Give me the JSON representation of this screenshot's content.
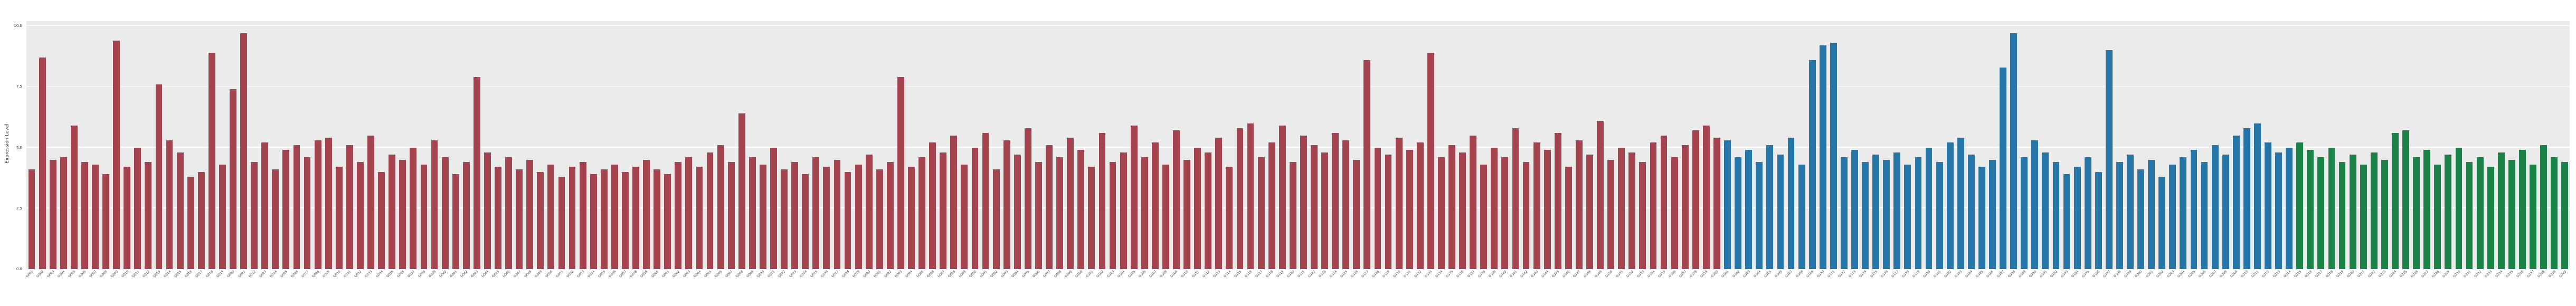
{
  "figure": {
    "background": "#ffffff",
    "plot_background": "#ebebeb",
    "grid_color": "#ffffff"
  },
  "chart_data": {
    "type": "bar",
    "title": "",
    "xlabel": "",
    "ylabel": "Expression Level",
    "ylim": [
      0,
      10
    ],
    "yticks": [
      0.0,
      2.5,
      5.0,
      7.5,
      10.0
    ],
    "ytick_labels": [
      "0.0",
      "2.5",
      "5.0",
      "7.5",
      "10.0"
    ],
    "grid": true,
    "legend": false,
    "groups": [
      {
        "name": "group-1",
        "color": "#A3444E",
        "categories": [
          "G001",
          "G002",
          "G003",
          "G004",
          "G005",
          "G006",
          "G007",
          "G008",
          "G009",
          "G010",
          "G011",
          "G012",
          "G013",
          "G014",
          "G015",
          "G016",
          "G017",
          "G018",
          "G019",
          "G020",
          "G021",
          "G022",
          "G023",
          "G024",
          "G025",
          "G026",
          "G027",
          "G028",
          "G029",
          "G030",
          "G031",
          "G032",
          "G033",
          "G034",
          "G035",
          "G036",
          "G037",
          "G038",
          "G039",
          "G040",
          "G041",
          "G042",
          "G043",
          "G044",
          "G045",
          "G046",
          "G047",
          "G048",
          "G049",
          "G050",
          "G051",
          "G052",
          "G053",
          "G054",
          "G055",
          "G056",
          "G057",
          "G058",
          "G059",
          "G060",
          "G061",
          "G062",
          "G063",
          "G064",
          "G065",
          "G066",
          "G067",
          "G068",
          "G069",
          "G070",
          "G071",
          "G072",
          "G073",
          "G074",
          "G075",
          "G076",
          "G077",
          "G078",
          "G079",
          "G080",
          "G081",
          "G082",
          "G083",
          "G084",
          "G085",
          "G086",
          "G087",
          "G088",
          "G089",
          "G090",
          "G091",
          "G092",
          "G093",
          "G094",
          "G095",
          "G096",
          "G097",
          "G098",
          "G099",
          "G100",
          "G101",
          "G102",
          "G103",
          "G104",
          "G105",
          "G106",
          "G107",
          "G108",
          "G109",
          "G110",
          "G111",
          "G112",
          "G113",
          "G114",
          "G115",
          "G116",
          "G117",
          "G118",
          "G119",
          "G120",
          "G121",
          "G122",
          "G123",
          "G124",
          "G125",
          "G126",
          "G127",
          "G128",
          "G129",
          "G130",
          "G131",
          "G132",
          "G133",
          "G134",
          "G135",
          "G136",
          "G137",
          "G138",
          "G139",
          "G140",
          "G141",
          "G142",
          "G143",
          "G144",
          "G145",
          "G146",
          "G147",
          "G148",
          "G149",
          "G150",
          "G151",
          "G152",
          "G153",
          "G154",
          "G155",
          "G156",
          "G157",
          "G158",
          "G159",
          "G160"
        ],
        "values": [
          4.1,
          8.7,
          4.5,
          4.6,
          5.9,
          4.4,
          4.3,
          3.9,
          9.4,
          4.2,
          5.0,
          4.4,
          7.6,
          5.3,
          4.8,
          3.8,
          4.0,
          8.9,
          4.3,
          7.4,
          9.7,
          4.4,
          5.2,
          4.1,
          4.9,
          5.1,
          4.6,
          5.3,
          5.4,
          4.2,
          5.1,
          4.4,
          5.5,
          4.0,
          4.7,
          4.5,
          5.0,
          4.3,
          5.3,
          4.6,
          3.9,
          4.4,
          7.9,
          4.8,
          4.2,
          4.6,
          4.1,
          4.5,
          4.0,
          4.3,
          3.8,
          4.2,
          4.4,
          3.9,
          4.1,
          4.3,
          4.0,
          4.2,
          4.5,
          4.1,
          3.9,
          4.4,
          4.6,
          4.2,
          4.8,
          5.1,
          4.4,
          6.4,
          4.6,
          4.3,
          5.0,
          4.1,
          4.4,
          3.9,
          4.6,
          4.2,
          4.5,
          4.0,
          4.3,
          4.7,
          4.1,
          4.4,
          7.9,
          4.2,
          4.6,
          5.2,
          4.8,
          5.5,
          4.3,
          5.0,
          5.6,
          4.1,
          5.3,
          4.7,
          5.8,
          4.4,
          5.1,
          4.6,
          5.4,
          4.9,
          4.2,
          5.6,
          4.4,
          4.8,
          5.9,
          4.6,
          5.2,
          4.3,
          5.7,
          4.5,
          5.0,
          4.8,
          5.4,
          4.2,
          5.8,
          6.0,
          4.6,
          5.2,
          5.9,
          4.4,
          5.5,
          5.1,
          4.8,
          5.6,
          5.3,
          4.5,
          8.6,
          5.0,
          4.7,
          5.4,
          4.9,
          5.2,
          8.9,
          4.6,
          5.1,
          4.8,
          5.5,
          4.3,
          5.0,
          4.6,
          5.8,
          4.4,
          5.2,
          4.9,
          5.6,
          4.2,
          5.3,
          4.7,
          6.1,
          4.5,
          5.0,
          4.8,
          4.4,
          5.2,
          5.5,
          4.6,
          5.1,
          5.7,
          5.9,
          5.4
        ]
      },
      {
        "name": "group-2",
        "color": "#2677A8",
        "categories": [
          "G161",
          "G162",
          "G163",
          "G164",
          "G165",
          "G166",
          "G167",
          "G168",
          "G169",
          "G170",
          "G171",
          "G172",
          "G173",
          "G174",
          "G175",
          "G176",
          "G177",
          "G178",
          "G179",
          "G180",
          "G181",
          "G182",
          "G183",
          "G184",
          "G185",
          "G186",
          "G187",
          "G188",
          "G189",
          "G190",
          "G191",
          "G192",
          "G193",
          "G194",
          "G195",
          "G196",
          "G197",
          "G198",
          "G199",
          "G200",
          "G201",
          "G202",
          "G203",
          "G204",
          "G205",
          "G206",
          "G207",
          "G208",
          "G209",
          "G210",
          "G211",
          "G212",
          "G213",
          "G214"
        ],
        "values": [
          5.3,
          4.6,
          4.9,
          4.4,
          5.1,
          4.7,
          5.4,
          4.3,
          8.6,
          9.2,
          9.3,
          4.6,
          4.9,
          4.4,
          4.7,
          4.5,
          4.8,
          4.3,
          4.6,
          5.0,
          4.4,
          5.2,
          5.4,
          4.7,
          4.2,
          4.5,
          8.3,
          9.7,
          4.6,
          5.3,
          4.8,
          4.4,
          3.9,
          4.2,
          4.6,
          4.0,
          9.0,
          4.4,
          4.7,
          4.1,
          4.5,
          3.8,
          4.3,
          4.6,
          4.9,
          4.4,
          5.1,
          4.7,
          5.5,
          5.8,
          6.0,
          5.2,
          4.8,
          5.0
        ]
      },
      {
        "name": "group-3",
        "color": "#1B8348",
        "categories": [
          "G215",
          "G216",
          "G217",
          "G218",
          "G219",
          "G220",
          "G221",
          "G222",
          "G223",
          "G224",
          "G225",
          "G226",
          "G227",
          "G228",
          "G229",
          "G230",
          "G231",
          "G232",
          "G233",
          "G234",
          "G235",
          "G236",
          "G237",
          "G238",
          "G239",
          "G240"
        ],
        "values": [
          5.2,
          4.9,
          4.6,
          5.0,
          4.4,
          4.7,
          4.3,
          4.8,
          4.5,
          5.6,
          5.7,
          4.6,
          4.9,
          4.3,
          4.7,
          5.0,
          4.4,
          4.6,
          4.2,
          4.8,
          4.5,
          4.9,
          4.3,
          5.1,
          4.6,
          4.4
        ]
      }
    ]
  }
}
